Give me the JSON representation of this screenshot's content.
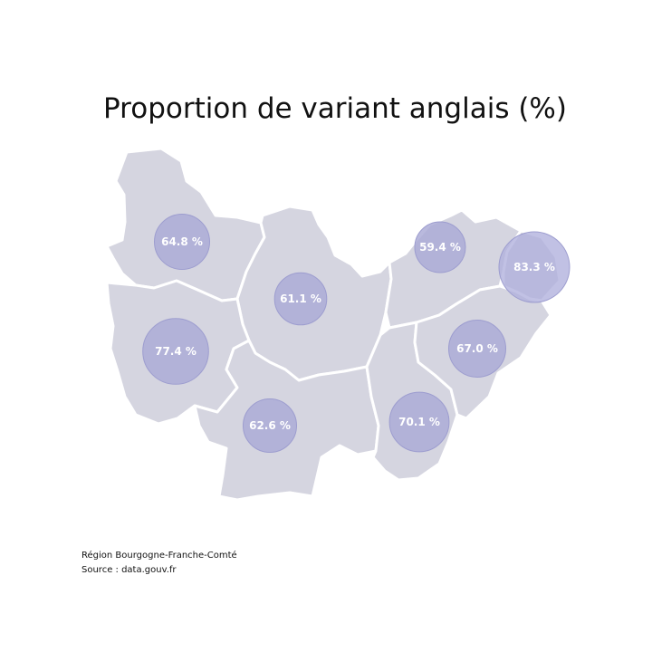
{
  "title": "Proportion de variant anglais (%)",
  "colors": {
    "region_fill": "#d5d5e0",
    "border": "#ffffff",
    "bubble": "#aaaad6",
    "label": "#ffffff"
  },
  "departments": [
    {
      "id": "yonne",
      "value": 64.8,
      "label": "64.8 %"
    },
    {
      "id": "cote-d-or",
      "value": 61.1,
      "label": "61.1 %"
    },
    {
      "id": "haute-saone",
      "value": 59.4,
      "label": "59.4 %"
    },
    {
      "id": "territoire-de-belfort",
      "value": 83.3,
      "label": "83.3 %"
    },
    {
      "id": "nievre",
      "value": 77.4,
      "label": "77.4 %"
    },
    {
      "id": "doubs",
      "value": 67.0,
      "label": "67.0 %"
    },
    {
      "id": "saone-et-loire",
      "value": 62.6,
      "label": "62.6 %"
    },
    {
      "id": "jura",
      "value": 70.1,
      "label": "70.1 %"
    }
  ],
  "footer": {
    "region": "Région Bourgogne-Franche-Comté",
    "source": "Source : data.gouv.fr"
  }
}
